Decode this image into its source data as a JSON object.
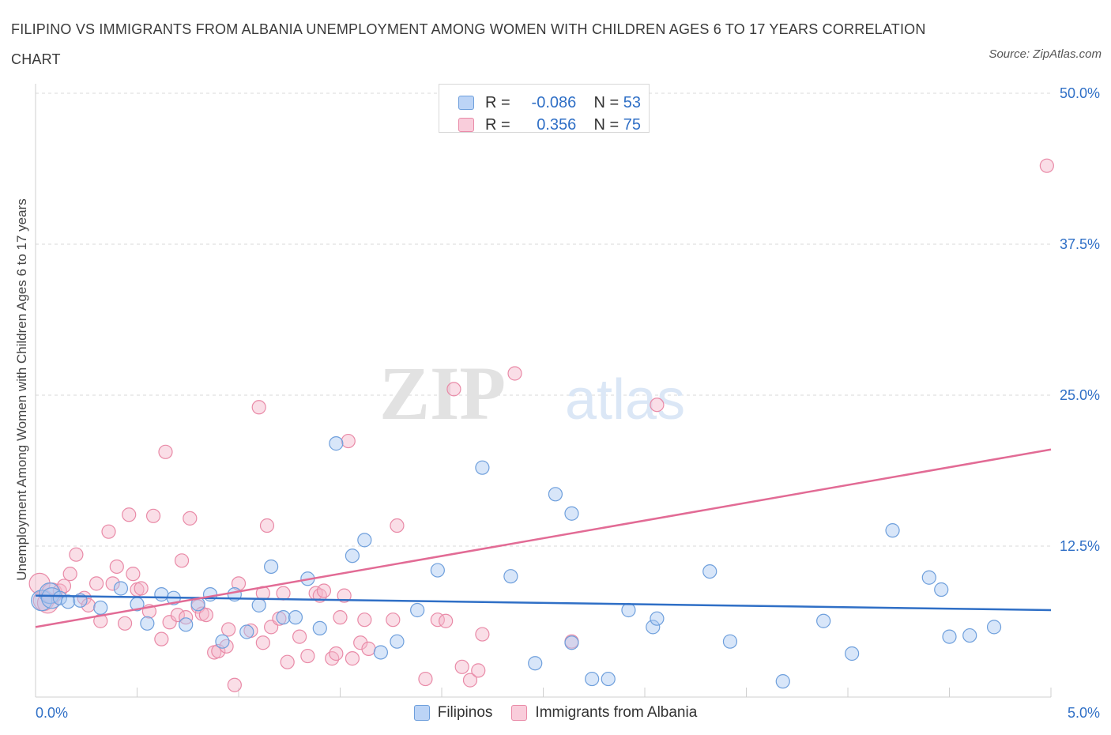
{
  "header": {
    "title": "FILIPINO VS IMMIGRANTS FROM ALBANIA UNEMPLOYMENT AMONG WOMEN WITH CHILDREN AGES 6 TO 17 YEARS CORRELATION CHART",
    "source": "Source: ZipAtlas.com"
  },
  "watermark": {
    "part1": "ZIP",
    "part2": "atlas"
  },
  "legend_top": {
    "rows": [
      {
        "r_label": "R =",
        "r_value": "-0.086",
        "n_label": "N =",
        "n_value": "53",
        "color": "#a9c8f2"
      },
      {
        "r_label": "R =",
        "r_value": "0.356",
        "n_label": "N =",
        "n_value": "75",
        "color": "#f5b6c9"
      }
    ]
  },
  "colors": {
    "blue_fill": "#a9c8f2",
    "blue_stroke": "#6e9fdc",
    "blue_line": "#2f6fc6",
    "pink_fill": "#f5b6c9",
    "pink_stroke": "#e98aa7",
    "pink_line": "#e26b95",
    "axis_text": "#2f6fc6",
    "grid": "#d9d9d9"
  },
  "chart_data": {
    "type": "scatter",
    "xlabel": "",
    "ylabel": "Unemployment Among Women with Children Ages 6 to 17 years",
    "xlim": [
      0,
      5
    ],
    "ylim": [
      0,
      50
    ],
    "x_tick_labels": [
      "0.0%",
      "5.0%"
    ],
    "y_tick_labels": [
      "12.5%",
      "25.0%",
      "37.5%",
      "50.0%"
    ],
    "y_ticks": [
      12.5,
      25,
      37.5,
      50
    ],
    "grid": true,
    "legend_position": "bottom-center",
    "series": [
      {
        "name": "Filipinos",
        "color": "#a9c8f2",
        "trend": [
          [
            0,
            8.4
          ],
          [
            5,
            7.2
          ]
        ],
        "points": [
          [
            0.03,
            8.0
          ],
          [
            0.07,
            8.6
          ],
          [
            0.08,
            8.2
          ],
          [
            0.12,
            8.2
          ],
          [
            0.16,
            7.9
          ],
          [
            0.22,
            8.0
          ],
          [
            0.32,
            7.4
          ],
          [
            0.42,
            9.0
          ],
          [
            0.5,
            7.7
          ],
          [
            0.55,
            6.1
          ],
          [
            0.62,
            8.5
          ],
          [
            0.68,
            8.2
          ],
          [
            0.74,
            6.0
          ],
          [
            0.8,
            7.7
          ],
          [
            0.86,
            8.5
          ],
          [
            0.92,
            4.6
          ],
          [
            0.98,
            8.5
          ],
          [
            1.04,
            5.4
          ],
          [
            1.1,
            7.6
          ],
          [
            1.16,
            10.8
          ],
          [
            1.22,
            6.6
          ],
          [
            1.28,
            6.6
          ],
          [
            1.34,
            9.8
          ],
          [
            1.4,
            5.7
          ],
          [
            1.48,
            21.0
          ],
          [
            1.56,
            11.7
          ],
          [
            1.62,
            13.0
          ],
          [
            1.7,
            3.7
          ],
          [
            1.78,
            4.6
          ],
          [
            1.88,
            7.2
          ],
          [
            1.98,
            10.5
          ],
          [
            2.2,
            19.0
          ],
          [
            2.34,
            10.0
          ],
          [
            2.46,
            2.8
          ],
          [
            2.56,
            16.8
          ],
          [
            2.64,
            4.5
          ],
          [
            2.64,
            15.2
          ],
          [
            2.74,
            1.5
          ],
          [
            2.82,
            1.5
          ],
          [
            2.92,
            7.2
          ],
          [
            3.04,
            5.8
          ],
          [
            3.06,
            6.5
          ],
          [
            3.32,
            10.4
          ],
          [
            3.42,
            4.6
          ],
          [
            3.68,
            1.3
          ],
          [
            3.88,
            6.3
          ],
          [
            4.02,
            3.6
          ],
          [
            4.22,
            13.8
          ],
          [
            4.4,
            9.9
          ],
          [
            4.46,
            8.9
          ],
          [
            4.6,
            5.1
          ],
          [
            4.72,
            5.8
          ],
          [
            4.5,
            5.0
          ]
        ]
      },
      {
        "name": "Immigrants from Albania",
        "color": "#f5b6c9",
        "trend": [
          [
            0,
            5.8
          ],
          [
            5,
            20.5
          ]
        ],
        "points": [
          [
            0.02,
            9.4
          ],
          [
            0.04,
            8.0
          ],
          [
            0.06,
            7.8
          ],
          [
            0.08,
            8.6
          ],
          [
            0.12,
            8.8
          ],
          [
            0.14,
            9.2
          ],
          [
            0.17,
            10.2
          ],
          [
            0.2,
            11.8
          ],
          [
            0.24,
            8.2
          ],
          [
            0.26,
            7.6
          ],
          [
            0.3,
            9.4
          ],
          [
            0.32,
            6.3
          ],
          [
            0.36,
            13.7
          ],
          [
            0.38,
            9.4
          ],
          [
            0.4,
            10.8
          ],
          [
            0.44,
            6.1
          ],
          [
            0.46,
            15.1
          ],
          [
            0.48,
            10.2
          ],
          [
            0.5,
            8.9
          ],
          [
            0.52,
            9.0
          ],
          [
            0.56,
            7.1
          ],
          [
            0.58,
            15.0
          ],
          [
            0.62,
            4.8
          ],
          [
            0.64,
            20.3
          ],
          [
            0.66,
            6.2
          ],
          [
            0.7,
            6.8
          ],
          [
            0.72,
            11.3
          ],
          [
            0.74,
            6.6
          ],
          [
            0.76,
            14.8
          ],
          [
            0.8,
            7.5
          ],
          [
            0.82,
            6.9
          ],
          [
            0.84,
            6.8
          ],
          [
            0.88,
            3.7
          ],
          [
            0.9,
            3.8
          ],
          [
            0.94,
            4.2
          ],
          [
            0.95,
            5.6
          ],
          [
            0.98,
            1.0
          ],
          [
            1.0,
            9.4
          ],
          [
            1.06,
            5.5
          ],
          [
            1.1,
            24.0
          ],
          [
            1.12,
            4.5
          ],
          [
            1.14,
            14.2
          ],
          [
            1.16,
            5.8
          ],
          [
            1.2,
            6.5
          ],
          [
            1.22,
            8.6
          ],
          [
            1.24,
            2.9
          ],
          [
            1.3,
            5.0
          ],
          [
            1.34,
            3.4
          ],
          [
            1.38,
            8.6
          ],
          [
            1.4,
            8.4
          ],
          [
            1.42,
            8.8
          ],
          [
            1.46,
            3.2
          ],
          [
            1.48,
            3.6
          ],
          [
            1.5,
            6.6
          ],
          [
            1.52,
            8.4
          ],
          [
            1.54,
            21.2
          ],
          [
            1.56,
            3.2
          ],
          [
            1.6,
            4.5
          ],
          [
            1.62,
            6.4
          ],
          [
            1.64,
            4.0
          ],
          [
            1.76,
            6.4
          ],
          [
            1.78,
            14.2
          ],
          [
            1.92,
            1.5
          ],
          [
            1.98,
            6.4
          ],
          [
            2.02,
            6.3
          ],
          [
            2.06,
            25.5
          ],
          [
            2.1,
            2.5
          ],
          [
            2.14,
            1.4
          ],
          [
            2.18,
            2.2
          ],
          [
            2.2,
            5.2
          ],
          [
            2.36,
            26.8
          ],
          [
            2.64,
            4.6
          ],
          [
            3.06,
            24.2
          ],
          [
            4.98,
            44.0
          ],
          [
            1.12,
            8.6
          ]
        ]
      }
    ]
  }
}
